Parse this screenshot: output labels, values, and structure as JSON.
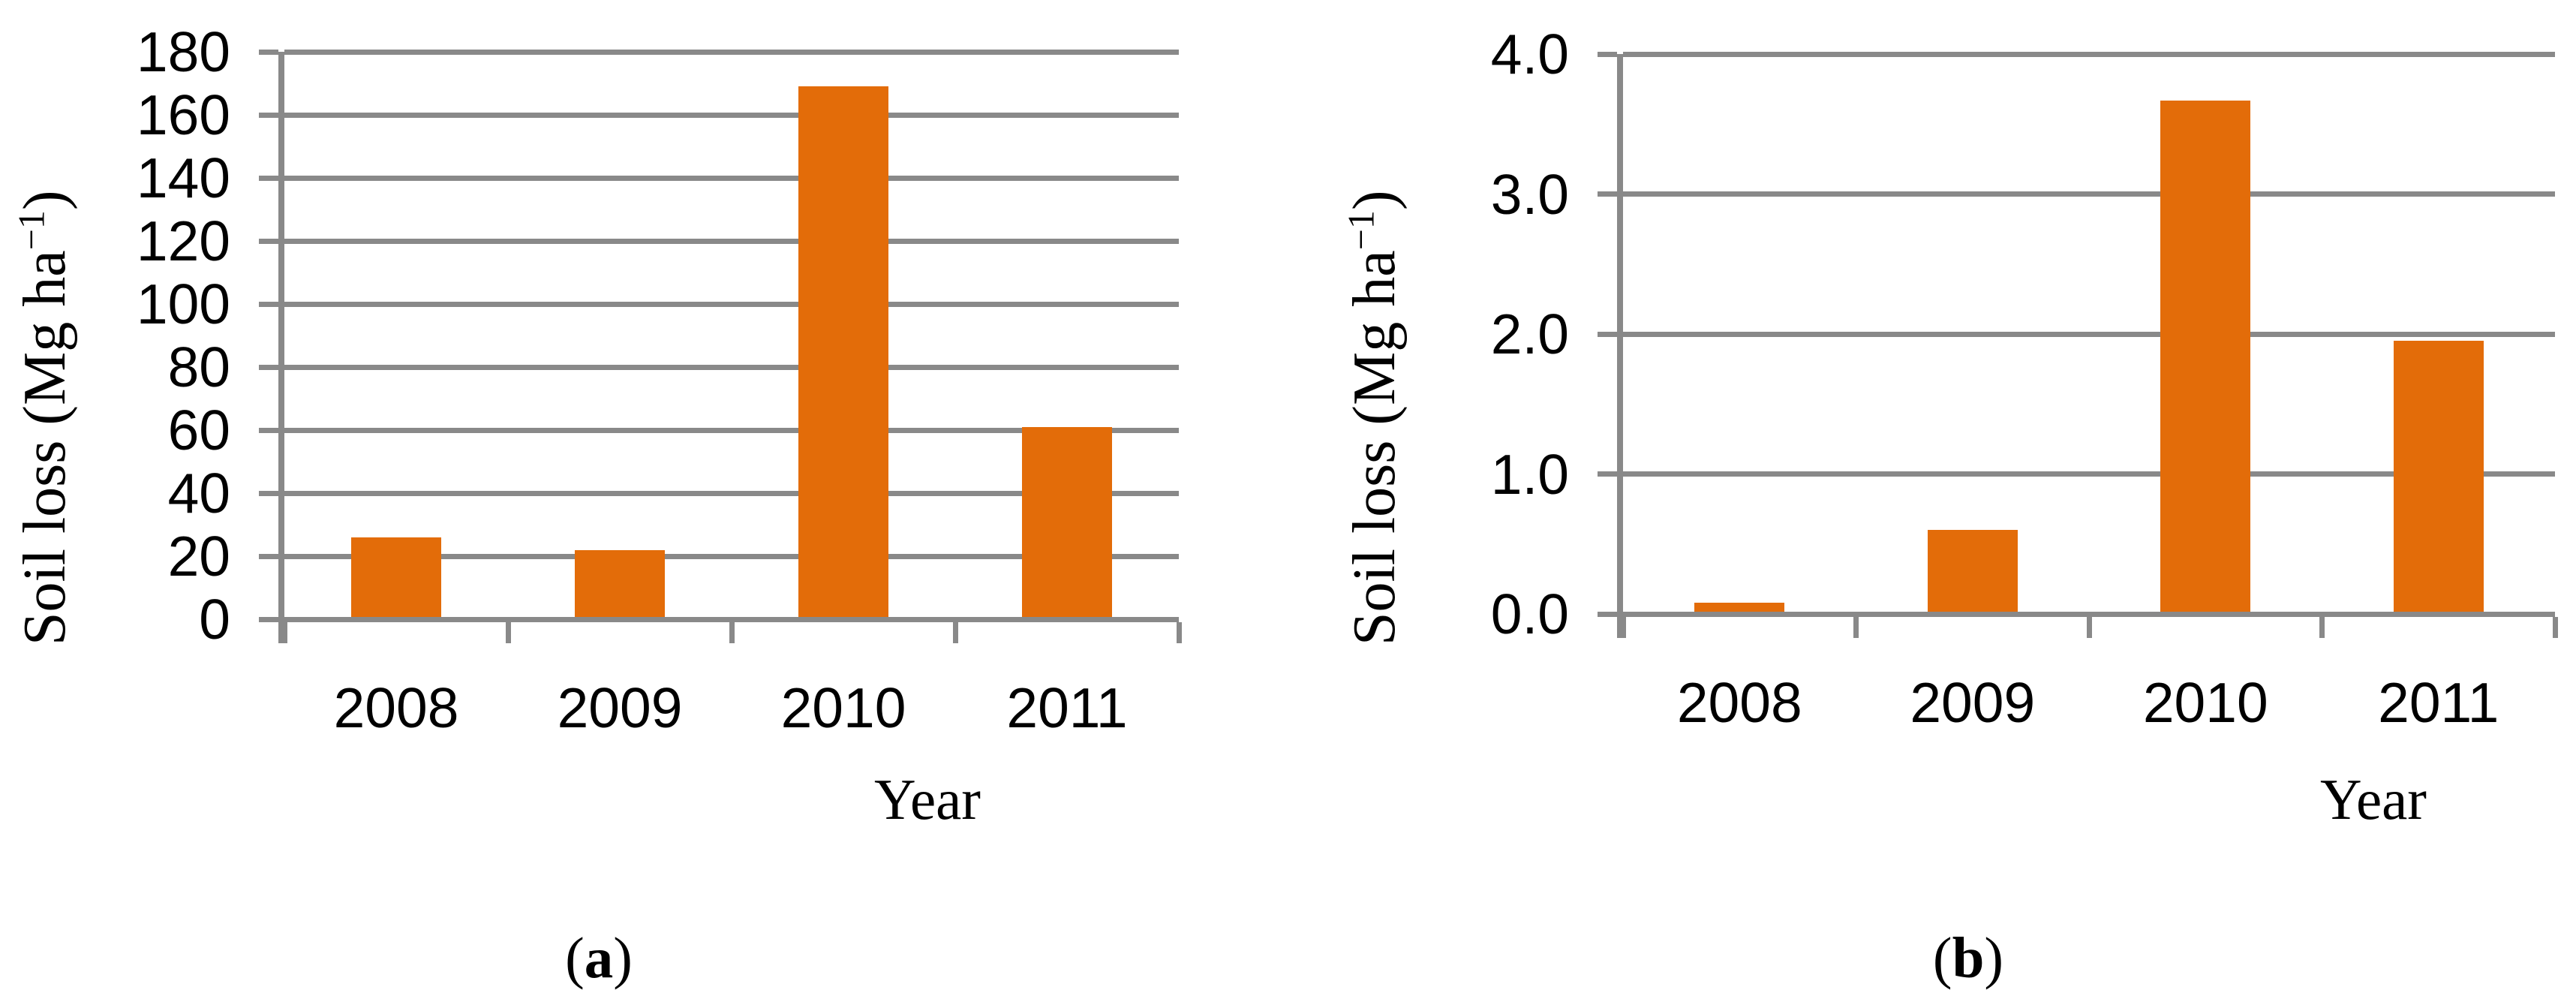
{
  "colors": {
    "bar": "#E36C09",
    "grid": "#898989",
    "text": "#000000"
  },
  "chart_data": [
    {
      "type": "bar",
      "panel": "a",
      "title": "",
      "categories": [
        "2008",
        "2009",
        "2010",
        "2011"
      ],
      "values": [
        26,
        22,
        169,
        61
      ],
      "xlabel": "Year",
      "ylabel": "Soil loss (Mg ha−1)",
      "ylabel_parts": {
        "main": "Soil loss (Mg ha",
        "sup": "−1",
        "end": ")"
      },
      "ylim": [
        0,
        180
      ],
      "ytick_step": 20,
      "yticks": [
        0,
        20,
        40,
        60,
        80,
        100,
        120,
        140,
        160,
        180
      ],
      "ytick_labels": [
        "0",
        "20",
        "40",
        "60",
        "80",
        "100",
        "120",
        "140",
        "160",
        "180"
      ],
      "grid": true,
      "legend": "none",
      "bar_color": "#E36C09",
      "caption": "(a)",
      "caption_parts": {
        "open": "(",
        "letter": "a",
        "close": ")"
      }
    },
    {
      "type": "bar",
      "panel": "b",
      "title": "",
      "categories": [
        "2008",
        "2009",
        "2010",
        "2011"
      ],
      "values": [
        0.08,
        0.6,
        3.67,
        1.95
      ],
      "xlabel": "Year",
      "ylabel": "Soil loss (Mg ha−1)",
      "ylabel_parts": {
        "main": "Soil loss (Mg ha",
        "sup": "−1",
        "end": ")"
      },
      "ylim": [
        0,
        4
      ],
      "ytick_step": 1,
      "yticks": [
        0,
        1,
        2,
        3,
        4
      ],
      "ytick_labels": [
        "0.0",
        "1.0",
        "2.0",
        "3.0",
        "4.0"
      ],
      "grid": true,
      "legend": "none",
      "bar_color": "#E36C09",
      "caption": "(b)",
      "caption_parts": {
        "open": "(",
        "letter": "b",
        "close": ")"
      }
    }
  ]
}
